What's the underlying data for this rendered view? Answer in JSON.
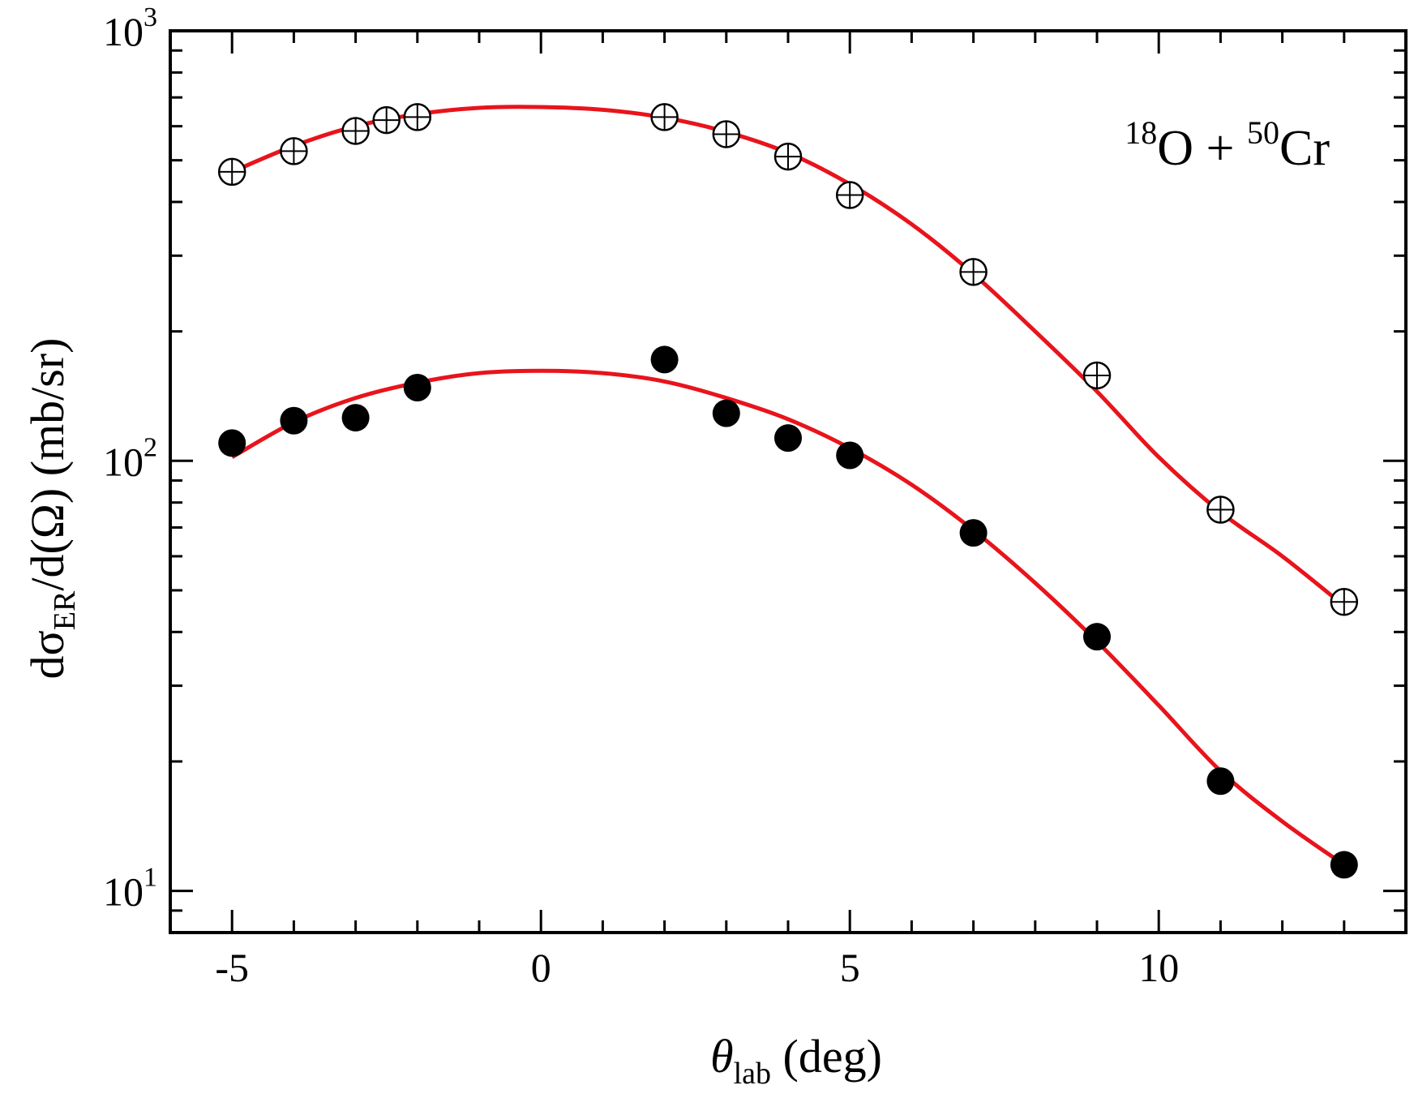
{
  "chart_data": {
    "type": "scatter",
    "xlabel": {
      "main": "θ",
      "sub": "lab",
      "rest": " (deg)"
    },
    "ylabel": {
      "pre": "dσ",
      "sub": "ER",
      "post": "/d(Ω) (mb/sr)"
    },
    "annotation": {
      "mass1": "18",
      "el1": "O + ",
      "mass2": "50",
      "el2": "Cr"
    },
    "x_range": [
      -6,
      14
    ],
    "y_range": [
      8,
      1000
    ],
    "y_scale": "log",
    "x_ticks": [
      -5,
      0,
      5,
      10
    ],
    "x_tick_labels": [
      "-5",
      "0",
      "5",
      "10"
    ],
    "y_ticks": [
      10,
      100,
      1000
    ],
    "y_tick_labels": [
      {
        "base": "10",
        "exp": "1"
      },
      {
        "base": "10",
        "exp": "2"
      },
      {
        "base": "10",
        "exp": "3"
      }
    ],
    "line_color": "#e8141c",
    "series": [
      {
        "marker": "open-circle-errorbar",
        "x": [
          -5,
          -4,
          -3,
          -2.5,
          -2,
          2,
          3,
          4,
          5,
          7,
          9,
          11,
          13
        ],
        "y": [
          470,
          525,
          585,
          620,
          630,
          630,
          575,
          510,
          415,
          275,
          158,
          77,
          47
        ]
      },
      {
        "marker": "filled-circle",
        "x": [
          -5,
          -4,
          -3,
          -2,
          2,
          3,
          4,
          5,
          7,
          9,
          11,
          13
        ],
        "y": [
          110,
          124,
          126,
          148,
          172,
          129,
          113,
          103,
          68,
          39,
          18,
          11.5
        ]
      }
    ],
    "fits": [
      {
        "x": [
          -5,
          -4,
          -3,
          -2,
          -1,
          0,
          1,
          2,
          3,
          4,
          5,
          6,
          7,
          8,
          9,
          10,
          11,
          12,
          13
        ],
        "y": [
          470,
          540,
          600,
          640,
          662,
          665,
          655,
          628,
          582,
          520,
          440,
          355,
          272,
          200,
          145,
          102,
          76,
          60,
          46
        ]
      },
      {
        "x": [
          -5,
          -4,
          -3,
          -2,
          -1,
          0,
          1,
          2,
          3,
          4,
          5,
          6,
          7,
          8,
          9,
          10,
          11,
          12,
          13
        ],
        "y": [
          102,
          123,
          140,
          152,
          160,
          162,
          160,
          153,
          140,
          125,
          107,
          88,
          69,
          52,
          38,
          27,
          19,
          14.5,
          11.5
        ]
      }
    ]
  }
}
